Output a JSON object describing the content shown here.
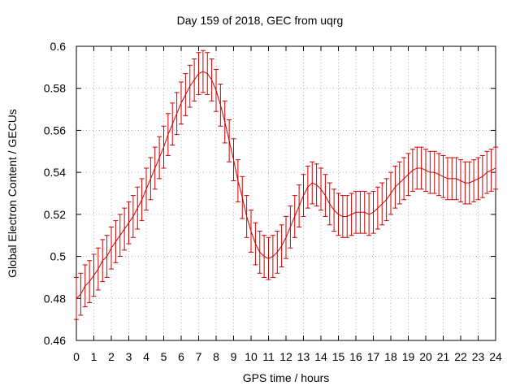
{
  "chart_data": {
    "type": "line",
    "title": "Day 159 of 2018, GEC from uqrg",
    "xlabel": "GPS time / hours",
    "ylabel": "Global Electron Content / GECUs",
    "xlim": [
      0,
      24
    ],
    "ylim": [
      0.46,
      0.6
    ],
    "grid": true,
    "legend": "none",
    "series_color": "#cc0000",
    "grid_color": "#a0a0a0",
    "xticks": [
      0,
      1,
      2,
      3,
      4,
      5,
      6,
      7,
      8,
      9,
      10,
      11,
      12,
      13,
      14,
      15,
      16,
      17,
      18,
      19,
      20,
      21,
      22,
      23,
      24
    ],
    "yticks": [
      0.46,
      0.48,
      0.5,
      0.52,
      0.54,
      0.56,
      0.58,
      0.6
    ],
    "ytick_labels": [
      "0.46",
      "0.48",
      "0.5",
      "0.52",
      "0.54",
      "0.56",
      "0.58",
      "0.6"
    ],
    "x": [
      0,
      0.25,
      0.5,
      0.75,
      1,
      1.25,
      1.5,
      1.75,
      2,
      2.25,
      2.5,
      2.75,
      3,
      3.25,
      3.5,
      3.75,
      4,
      4.25,
      4.5,
      4.75,
      5,
      5.25,
      5.5,
      5.75,
      6,
      6.25,
      6.5,
      6.75,
      7,
      7.25,
      7.5,
      7.75,
      8,
      8.25,
      8.5,
      8.75,
      9,
      9.25,
      9.5,
      9.75,
      10,
      10.25,
      10.5,
      10.75,
      11,
      11.25,
      11.5,
      11.75,
      12,
      12.25,
      12.5,
      12.75,
      13,
      13.25,
      13.5,
      13.75,
      14,
      14.25,
      14.5,
      14.75,
      15,
      15.25,
      15.5,
      15.75,
      16,
      16.25,
      16.5,
      16.75,
      17,
      17.25,
      17.5,
      17.75,
      18,
      18.25,
      18.5,
      18.75,
      19,
      19.25,
      19.5,
      19.75,
      20,
      20.25,
      20.5,
      20.75,
      21,
      21.25,
      21.5,
      21.75,
      22,
      22.25,
      22.5,
      22.75,
      23,
      23.25,
      23.5,
      23.75,
      24
    ],
    "y": [
      0.48,
      0.482,
      0.486,
      0.488,
      0.491,
      0.494,
      0.498,
      0.5,
      0.504,
      0.507,
      0.51,
      0.513,
      0.516,
      0.519,
      0.523,
      0.527,
      0.532,
      0.537,
      0.542,
      0.547,
      0.552,
      0.558,
      0.563,
      0.568,
      0.573,
      0.577,
      0.581,
      0.584,
      0.587,
      0.588,
      0.587,
      0.584,
      0.579,
      0.572,
      0.564,
      0.555,
      0.546,
      0.536,
      0.528,
      0.519,
      0.512,
      0.506,
      0.502,
      0.5,
      0.499,
      0.5,
      0.502,
      0.505,
      0.509,
      0.514,
      0.519,
      0.524,
      0.529,
      0.533,
      0.535,
      0.534,
      0.532,
      0.529,
      0.525,
      0.522,
      0.52,
      0.519,
      0.519,
      0.52,
      0.521,
      0.521,
      0.521,
      0.52,
      0.521,
      0.523,
      0.525,
      0.527,
      0.53,
      0.533,
      0.535,
      0.537,
      0.539,
      0.541,
      0.542,
      0.542,
      0.541,
      0.54,
      0.54,
      0.539,
      0.538,
      0.537,
      0.537,
      0.537,
      0.536,
      0.535,
      0.535,
      0.536,
      0.537,
      0.538,
      0.54,
      0.541,
      0.542
    ],
    "error": 0.01
  }
}
